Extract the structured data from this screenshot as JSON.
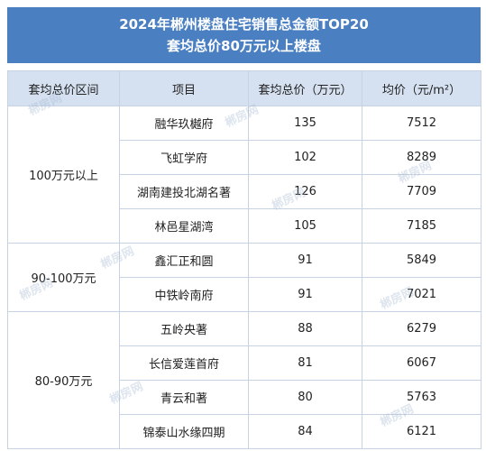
{
  "title": {
    "line1": "2024年郴州楼盘住宅销售总金额TOP20",
    "line2": "套均总价80万元以上楼盘"
  },
  "columns": [
    "套均总价区间",
    "项目",
    "套均总价（万元）",
    "均价（元/m²）"
  ],
  "groups": [
    {
      "range": "100万元以上",
      "rows": [
        {
          "project": "融华玖樾府",
          "total": "135",
          "avg": "7512"
        },
        {
          "project": "飞虹学府",
          "total": "102",
          "avg": "8289"
        },
        {
          "project": "湖南建投北湖名著",
          "total": "126",
          "avg": "7709"
        },
        {
          "project": "林邑星湖湾",
          "total": "105",
          "avg": "7185"
        }
      ]
    },
    {
      "range": "90-100万元",
      "rows": [
        {
          "project": "鑫汇正和圆",
          "total": "91",
          "avg": "5849"
        },
        {
          "project": "中铁岭南府",
          "total": "91",
          "avg": "7021"
        }
      ]
    },
    {
      "range": "80-90万元",
      "rows": [
        {
          "project": "五岭央著",
          "total": "88",
          "avg": "6279"
        },
        {
          "project": "长信爱莲首府",
          "total": "81",
          "avg": "6067"
        },
        {
          "project": "青云和著",
          "total": "80",
          "avg": "5763"
        },
        {
          "project": "锦泰山水缘四期",
          "total": "84",
          "avg": "6121"
        }
      ]
    }
  ],
  "watermark": "郴房网"
}
